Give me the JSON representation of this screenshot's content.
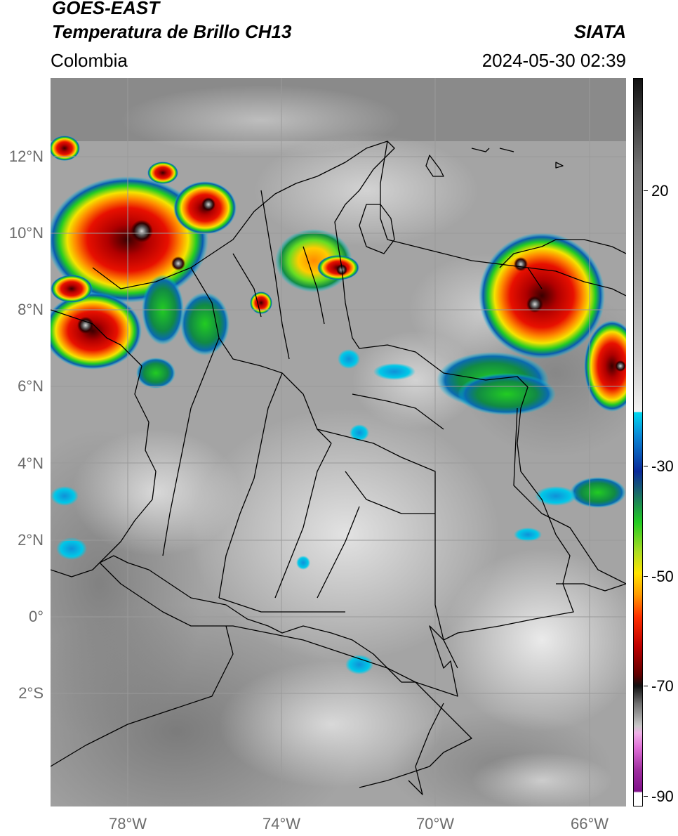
{
  "header": {
    "title_line1": "GOES-EAST",
    "title_line2": "Temperatura de Brillo CH13",
    "brand": "SIATA",
    "region": "Colombia",
    "timestamp": "2024-05-30 02:39"
  },
  "axes": {
    "lat_labels": [
      {
        "id": "12n",
        "text": "12°N",
        "value": 12
      },
      {
        "id": "10n",
        "text": "10°N",
        "value": 10
      },
      {
        "id": "8n",
        "text": "8°N",
        "value": 8
      },
      {
        "id": "6n",
        "text": "6°N",
        "value": 6
      },
      {
        "id": "4n",
        "text": "4°N",
        "value": 4
      },
      {
        "id": "2n",
        "text": "2°N",
        "value": 2
      },
      {
        "id": "0",
        "text": "0°",
        "value": 0
      },
      {
        "id": "2s",
        "text": "2°S",
        "value": -2
      }
    ],
    "lon_labels": [
      {
        "id": "78w",
        "text": "78°W",
        "value": -78
      },
      {
        "id": "74w",
        "text": "74°W",
        "value": -74
      },
      {
        "id": "70w",
        "text": "70°W",
        "value": -70
      },
      {
        "id": "66w",
        "text": "66°W",
        "value": -66
      }
    ]
  },
  "colorbar": {
    "ticks": [
      {
        "id": "20",
        "text": "20",
        "value": 20
      },
      {
        "id": "minus30",
        "text": "-30",
        "value": -30
      },
      {
        "id": "minus50",
        "text": "-50",
        "value": -50
      },
      {
        "id": "minus70",
        "text": "-70",
        "value": -70
      },
      {
        "id": "minus90",
        "text": "-90",
        "value": -90
      }
    ],
    "colors": {
      "warm": "#111111",
      "cold_gray": "#e6e6e6",
      "cyan": "#00c8e8",
      "blue": "#0a2a9a",
      "green": "#22cc22",
      "yellow": "#ffe400",
      "orange": "#ff7a00",
      "red": "#d20000",
      "dark_red": "#400000",
      "magenta": "#e070d8",
      "purple": "#80108a"
    }
  },
  "map": {
    "description_colors": {
      "boundary": "#000000",
      "grid": "#9a9a9a"
    }
  }
}
